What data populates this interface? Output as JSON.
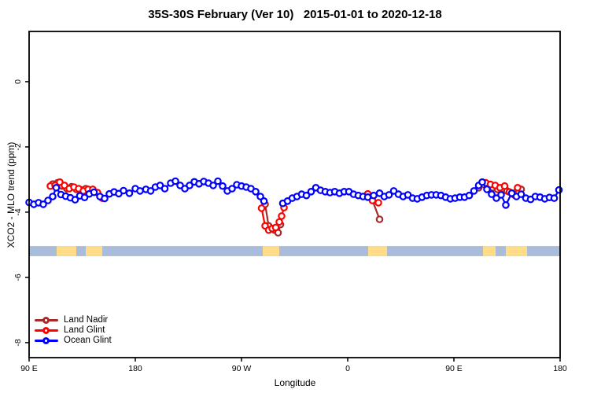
{
  "title": "35S-30S February (Ver 10)   2015-01-01 to 2020-12-18",
  "axes": {
    "x": {
      "label": "Longitude",
      "ticks": [
        {
          "lon": 90,
          "label": "90 E"
        },
        {
          "lon": 180,
          "label": "180"
        },
        {
          "lon": 270,
          "label": "90 W"
        },
        {
          "lon": 360,
          "label": "0"
        },
        {
          "lon": 450,
          "label": "90 E"
        },
        {
          "lon": 540,
          "label": "180"
        }
      ]
    },
    "y": {
      "label": "XCO2 - MLO trend (ppm)",
      "ticks": [
        {
          "value": 0,
          "label": "0"
        },
        {
          "value": -2,
          "label": "-2"
        },
        {
          "value": -4,
          "label": "-4"
        },
        {
          "value": -6,
          "label": "-6"
        },
        {
          "value": -8,
          "label": "-8"
        }
      ]
    }
  },
  "legend": {
    "items": [
      {
        "label": "Land Nadir",
        "color": "#A52A2A"
      },
      {
        "label": "Land Glint",
        "color": "#FF0000"
      },
      {
        "label": "Ocean Glint",
        "color": "#0000FF"
      }
    ]
  },
  "map_strip": {
    "description": "latitude-band coastline strip: ocean water with land masses (Australia, South America, South Africa, Australia repeated)",
    "water_color": "#A9BCD9",
    "land_color": "#FFDD88",
    "y_range": [
      -5.35,
      -5.04
    ],
    "land_bands": [
      [
        113.3,
        130.0
      ],
      [
        138.0,
        152.0
      ],
      [
        288.0,
        302.0
      ],
      [
        377.3,
        393.3
      ],
      [
        474.7,
        485.3
      ],
      [
        494.0,
        512.0
      ]
    ]
  },
  "chart_data": {
    "type": "line",
    "title": "35S-30S February (Ver 10)   2015-01-01 to 2020-12-18",
    "xlabel": "Longitude",
    "ylabel": "XCO2 - MLO trend (ppm)",
    "x_axis_note": "x is longitude starting at 90E, wrapping eastward through 180, 90W, 0, 90E to 180; stored as continuous degrees 90..540",
    "xlim": [
      90,
      540
    ],
    "ylim": [
      -8.46,
      1.54
    ],
    "grid": false,
    "legend_position": "bottom-left",
    "marker": "open-circle",
    "series": [
      {
        "name": "Land Nadir",
        "color": "#A52A2A",
        "segments": [
          [
            [
              110,
              -3.14
            ],
            [
              114,
              -3.1
            ],
            [
              118,
              -3.2
            ],
            [
              122,
              -3.28
            ],
            [
              126,
              -3.22
            ],
            [
              130,
              -3.3
            ],
            [
              134,
              -3.32
            ],
            [
              138,
              -3.28
            ],
            [
              142,
              -3.36
            ]
          ],
          [
            [
              290,
              -3.76
            ],
            [
              293,
              -4.42
            ],
            [
              298,
              -4.55
            ],
            [
              301,
              -4.63
            ],
            [
              303,
              -4.38
            ]
          ],
          [
            [
              381,
              -3.64
            ],
            [
              387,
              -4.22
            ]
          ],
          [
            [
              471,
              -3.25
            ],
            [
              475,
              -3.15
            ],
            [
              479,
              -3.22
            ],
            [
              483,
              -3.25
            ],
            [
              487,
              -3.3
            ],
            [
              491,
              -3.28
            ],
            [
              495,
              -3.35
            ],
            [
              499,
              -3.42
            ],
            [
              503,
              -3.38
            ],
            [
              507,
              -3.3
            ]
          ]
        ]
      },
      {
        "name": "Land Glint",
        "color": "#FF0000",
        "segments": [
          [
            [
              108,
              -3.2
            ],
            [
              112,
              -3.18
            ],
            [
              116,
              -3.08
            ],
            [
              120,
              -3.18
            ],
            [
              124,
              -3.28
            ],
            [
              128,
              -3.23
            ],
            [
              132,
              -3.28
            ],
            [
              136,
              -3.35
            ],
            [
              140,
              -3.3
            ],
            [
              144,
              -3.3
            ],
            [
              148,
              -3.4
            ],
            [
              152,
              -3.57
            ]
          ],
          [
            [
              287,
              -3.88
            ],
            [
              290,
              -4.42
            ],
            [
              293,
              -4.55
            ],
            [
              296,
              -4.5
            ],
            [
              299,
              -4.47
            ],
            [
              302,
              -4.3
            ],
            [
              304,
              -4.12
            ],
            [
              306,
              -3.86
            ]
          ],
          [
            [
              377,
              -3.44
            ],
            [
              381,
              -3.64
            ],
            [
              386,
              -3.71
            ]
          ],
          [
            [
              477,
              -3.1
            ],
            [
              481,
              -3.15
            ],
            [
              485,
              -3.18
            ],
            [
              489,
              -3.25
            ],
            [
              493,
              -3.2
            ],
            [
              497,
              -3.38
            ],
            [
              501,
              -3.47
            ],
            [
              504,
              -3.25
            ]
          ]
        ]
      },
      {
        "name": "Ocean Glint",
        "color": "#0000FF",
        "segments": [
          [
            [
              90,
              -3.7
            ],
            [
              94,
              -3.76
            ],
            [
              98,
              -3.71
            ],
            [
              102,
              -3.76
            ],
            [
              106,
              -3.64
            ],
            [
              110,
              -3.52
            ],
            [
              113,
              -3.25
            ],
            [
              117,
              -3.46
            ],
            [
              121,
              -3.51
            ],
            [
              125,
              -3.56
            ],
            [
              129,
              -3.62
            ],
            [
              133,
              -3.5
            ],
            [
              137,
              -3.55
            ],
            [
              141,
              -3.44
            ],
            [
              145,
              -3.39
            ],
            [
              150,
              -3.52
            ],
            [
              154,
              -3.58
            ],
            [
              158,
              -3.44
            ],
            [
              162,
              -3.38
            ],
            [
              166,
              -3.43
            ],
            [
              170,
              -3.34
            ],
            [
              175,
              -3.42
            ],
            [
              180,
              -3.28
            ],
            [
              184,
              -3.35
            ],
            [
              189,
              -3.3
            ],
            [
              193,
              -3.35
            ],
            [
              197,
              -3.23
            ],
            [
              201,
              -3.18
            ],
            [
              205,
              -3.28
            ],
            [
              210,
              -3.11
            ],
            [
              214,
              -3.05
            ],
            [
              218,
              -3.18
            ],
            [
              222,
              -3.28
            ],
            [
              226,
              -3.18
            ],
            [
              230,
              -3.07
            ],
            [
              234,
              -3.13
            ],
            [
              238,
              -3.06
            ],
            [
              242,
              -3.11
            ],
            [
              246,
              -3.18
            ],
            [
              250,
              -3.05
            ],
            [
              254,
              -3.2
            ],
            [
              258,
              -3.35
            ],
            [
              262,
              -3.28
            ],
            [
              266,
              -3.16
            ],
            [
              270,
              -3.2
            ],
            [
              274,
              -3.23
            ],
            [
              278,
              -3.28
            ],
            [
              282,
              -3.37
            ],
            [
              286,
              -3.52
            ],
            [
              289,
              -3.66
            ]
          ],
          [
            [
              305,
              -3.73
            ],
            [
              309,
              -3.66
            ],
            [
              313,
              -3.57
            ],
            [
              317,
              -3.52
            ],
            [
              321,
              -3.45
            ],
            [
              325,
              -3.49
            ],
            [
              329,
              -3.37
            ],
            [
              333,
              -3.25
            ],
            [
              337,
              -3.33
            ],
            [
              341,
              -3.37
            ],
            [
              345,
              -3.4
            ],
            [
              349,
              -3.37
            ],
            [
              353,
              -3.42
            ],
            [
              357,
              -3.37
            ],
            [
              361,
              -3.37
            ],
            [
              365,
              -3.45
            ],
            [
              369,
              -3.49
            ],
            [
              373,
              -3.52
            ],
            [
              377,
              -3.54
            ],
            [
              382,
              -3.49
            ],
            [
              387,
              -3.42
            ],
            [
              391,
              -3.52
            ],
            [
              395,
              -3.47
            ],
            [
              399,
              -3.35
            ],
            [
              403,
              -3.45
            ],
            [
              407,
              -3.52
            ],
            [
              411,
              -3.47
            ],
            [
              415,
              -3.57
            ],
            [
              419,
              -3.59
            ],
            [
              423,
              -3.54
            ],
            [
              427,
              -3.49
            ],
            [
              431,
              -3.47
            ],
            [
              435,
              -3.47
            ],
            [
              439,
              -3.49
            ],
            [
              443,
              -3.54
            ],
            [
              447,
              -3.59
            ],
            [
              451,
              -3.57
            ],
            [
              455,
              -3.54
            ],
            [
              459,
              -3.54
            ],
            [
              463,
              -3.49
            ],
            [
              467,
              -3.35
            ],
            [
              471,
              -3.18
            ],
            [
              474,
              -3.08
            ],
            [
              478,
              -3.3
            ],
            [
              482,
              -3.45
            ],
            [
              486,
              -3.57
            ],
            [
              490,
              -3.47
            ],
            [
              494,
              -3.78
            ],
            [
              499,
              -3.42
            ],
            [
              503,
              -3.52
            ],
            [
              507,
              -3.45
            ],
            [
              511,
              -3.57
            ],
            [
              515,
              -3.61
            ],
            [
              519,
              -3.52
            ],
            [
              523,
              -3.54
            ],
            [
              527,
              -3.59
            ],
            [
              531,
              -3.55
            ],
            [
              535,
              -3.57
            ],
            [
              539,
              -3.32
            ]
          ]
        ]
      }
    ]
  }
}
